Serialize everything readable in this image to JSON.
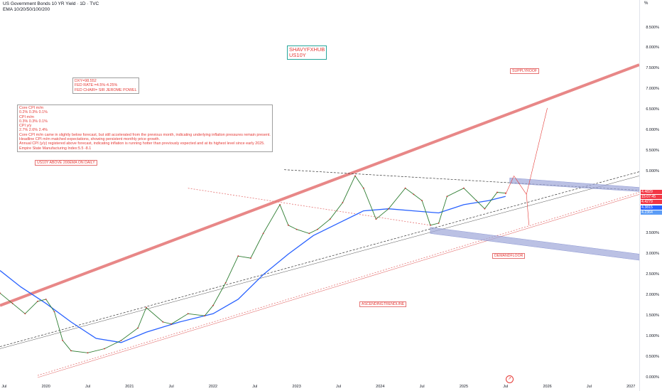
{
  "header": {
    "title": "US Government Bonds 10 YR Yield · 1D · TVC",
    "indicator": "EMA 10/20/50/100/200"
  },
  "axis": {
    "percent_button": "%"
  },
  "annotations": {
    "brand": "SHAVYFXHUB\nUS10Y",
    "macro_box": "DXY=98.552\nFED RATE:=4.5%-4.25%\nFED CHAIR= SIR JEROME POWEL",
    "cpi_box": "Core CPI m/m\n0.2% 0.3% 0.1%\nCPI m/m\n0.3% 0.3% 0.1%\nCPI y/y\n2.7% 2.6% 2.4%\nCore CPI m/m came in slightly below forecast, but still accelerated from the previous month, indicating underlying inflation pressures remain present.\nHeadline CPI m/m matched expectations, showing persistent monthly price growth.\nAnnual CPI (y/y) registered above forecast, indicating inflation is running hotter than previously expected and at its highest level since early 2025.\nEmpire State Manufacturing Index:5.5 -8.1",
    "ema_note": "US10Y ABOVE 200EMA ON DAILY",
    "supply": "SUPPLYROOF",
    "demand": "DEMANDFLOOR",
    "ascending": "ASCENDINGTRENDLINE"
  },
  "price_labels": [
    "4.4829",
    "15:07:45",
    "4.4279",
    "4.3815",
    "4.2364"
  ],
  "chart_data": {
    "type": "line",
    "title": "US Government Bonds 10 YR Yield · 1D · TVC",
    "x_tick_labels": [
      "Jul",
      "2020",
      "Jul",
      "2021",
      "Jul",
      "2022",
      "Jul",
      "2023",
      "Jul",
      "2024",
      "Jul",
      "2025",
      "Jul",
      "2026",
      "Jul",
      "2027"
    ],
    "y_tick_labels": [
      "8.500%",
      "8.000%",
      "7.500%",
      "7.000%",
      "6.500%",
      "6.000%",
      "5.500%",
      "5.000%",
      "4.500%",
      "4.000%",
      "3.500%",
      "3.000%",
      "2.500%",
      "2.000%",
      "1.500%",
      "1.000%",
      "0.500%",
      "0.000%"
    ],
    "ylim": [
      0.0,
      8.6
    ],
    "xlim": [
      2019.45,
      2027.1
    ],
    "grid": false,
    "series": [
      {
        "name": "US10Y",
        "x": [
          2019.45,
          2019.6,
          2019.75,
          2019.9,
          2020.0,
          2020.1,
          2020.2,
          2020.3,
          2020.5,
          2020.7,
          2020.9,
          2021.1,
          2021.2,
          2021.4,
          2021.5,
          2021.7,
          2021.9,
          2022.0,
          2022.15,
          2022.3,
          2022.45,
          2022.6,
          2022.8,
          2022.9,
          2023.0,
          2023.15,
          2023.25,
          2023.4,
          2023.55,
          2023.7,
          2023.8,
          2023.95,
          2024.1,
          2024.3,
          2024.4,
          2024.5,
          2024.6,
          2024.7,
          2024.8,
          2025.0,
          2025.15,
          2025.25,
          2025.4,
          2025.5
        ],
        "y": [
          2.05,
          1.8,
          1.55,
          1.85,
          1.9,
          1.6,
          0.9,
          0.65,
          0.6,
          0.7,
          0.9,
          1.2,
          1.7,
          1.35,
          1.3,
          1.55,
          1.5,
          1.75,
          2.3,
          2.95,
          2.9,
          3.5,
          4.2,
          3.7,
          3.6,
          3.5,
          3.6,
          3.85,
          4.25,
          4.9,
          4.6,
          3.85,
          4.1,
          4.6,
          4.45,
          4.3,
          3.7,
          3.75,
          4.4,
          4.6,
          4.3,
          4.1,
          4.5,
          4.48
        ]
      },
      {
        "name": "EMA 200",
        "x": [
          2019.45,
          2019.7,
          2020.0,
          2020.3,
          2020.6,
          2020.9,
          2021.2,
          2021.6,
          2022.0,
          2022.3,
          2022.6,
          2022.9,
          2023.2,
          2023.5,
          2023.8,
          2024.1,
          2024.4,
          2024.7,
          2025.0,
          2025.3,
          2025.5
        ],
        "y": [
          2.6,
          2.2,
          1.8,
          1.35,
          0.95,
          0.85,
          1.1,
          1.35,
          1.55,
          1.9,
          2.5,
          3.0,
          3.45,
          3.75,
          4.05,
          4.1,
          4.05,
          4.0,
          4.2,
          4.3,
          4.4
        ]
      }
    ]
  },
  "colors": {
    "price": "#2e7d32",
    "ema": "#2962ff",
    "channel": "#e57373",
    "zone": "#9fa8da",
    "label_red": "#f23645",
    "label_blue": "#2962ff"
  }
}
